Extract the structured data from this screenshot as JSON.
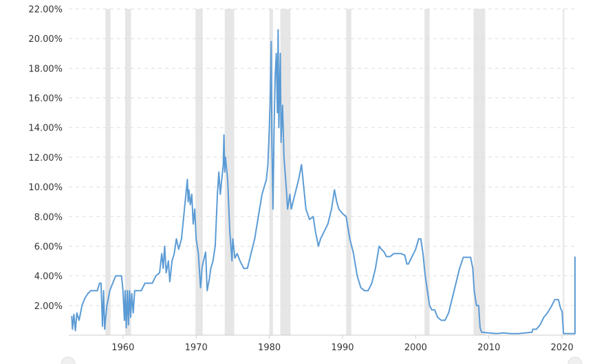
{
  "chart_data": {
    "type": "line",
    "title": "",
    "xlabel": "",
    "ylabel": "",
    "xlim": [
      1953.0,
      2022.3
    ],
    "ylim": [
      0,
      22
    ],
    "y_ticks": [
      {
        "value": 2,
        "label": "2.00%"
      },
      {
        "value": 4,
        "label": "4.00%"
      },
      {
        "value": 6,
        "label": "6.00%"
      },
      {
        "value": 8,
        "label": "8.00%"
      },
      {
        "value": 10,
        "label": "10.00%"
      },
      {
        "value": 12,
        "label": "12.00%"
      },
      {
        "value": 14,
        "label": "14.00%"
      },
      {
        "value": 16,
        "label": "16.00%"
      },
      {
        "value": 18,
        "label": "18.00%"
      },
      {
        "value": 20,
        "label": "20.00%"
      },
      {
        "value": 22,
        "label": "22.00%"
      }
    ],
    "x_ticks": [
      {
        "value": 1960,
        "label": "1960"
      },
      {
        "value": 1970,
        "label": "1970"
      },
      {
        "value": 1980,
        "label": "1980"
      },
      {
        "value": 1990,
        "label": "1990"
      },
      {
        "value": 2000,
        "label": "2000"
      },
      {
        "value": 2010,
        "label": "2010"
      },
      {
        "value": 2020,
        "label": "2020"
      }
    ],
    "grid": true,
    "recessions": [
      [
        1957.6,
        1958.3
      ],
      [
        1960.3,
        1961.1
      ],
      [
        1969.9,
        1970.9
      ],
      [
        1973.9,
        1975.2
      ],
      [
        1980.0,
        1980.5
      ],
      [
        1981.5,
        1982.9
      ],
      [
        1990.5,
        1991.2
      ],
      [
        2001.2,
        2001.9
      ],
      [
        2007.9,
        2009.5
      ],
      [
        2020.1,
        2020.3
      ]
    ],
    "series": [
      {
        "color": "#5b9bd5",
        "points": [
          [
            1953.0,
            1.3
          ],
          [
            1953.1,
            0.4
          ],
          [
            1953.3,
            1.4
          ],
          [
            1953.5,
            0.3
          ],
          [
            1953.7,
            1.5
          ],
          [
            1954.0,
            1.0
          ],
          [
            1954.4,
            2.0
          ],
          [
            1954.8,
            2.5
          ],
          [
            1955.2,
            2.8
          ],
          [
            1955.6,
            3.0
          ],
          [
            1956.0,
            3.0
          ],
          [
            1956.5,
            3.0
          ],
          [
            1956.8,
            3.5
          ],
          [
            1957.0,
            3.5
          ],
          [
            1957.2,
            0.6
          ],
          [
            1957.35,
            3.0
          ],
          [
            1957.5,
            0.4
          ],
          [
            1957.6,
            1.0
          ],
          [
            1957.8,
            2.0
          ],
          [
            1958.2,
            3.0
          ],
          [
            1958.6,
            3.5
          ],
          [
            1959.0,
            4.0
          ],
          [
            1959.5,
            4.0
          ],
          [
            1959.8,
            4.0
          ],
          [
            1960.0,
            3.0
          ],
          [
            1960.2,
            1.0
          ],
          [
            1960.3,
            3.0
          ],
          [
            1960.45,
            0.5
          ],
          [
            1960.6,
            3.0
          ],
          [
            1960.75,
            0.7
          ],
          [
            1960.9,
            3.0
          ],
          [
            1961.05,
            1.2
          ],
          [
            1961.2,
            2.8
          ],
          [
            1961.4,
            1.5
          ],
          [
            1961.6,
            3.0
          ],
          [
            1962.0,
            3.0
          ],
          [
            1962.5,
            3.0
          ],
          [
            1963.0,
            3.5
          ],
          [
            1963.5,
            3.5
          ],
          [
            1964.0,
            3.5
          ],
          [
            1964.5,
            4.0
          ],
          [
            1965.0,
            4.2
          ],
          [
            1965.3,
            5.5
          ],
          [
            1965.5,
            4.5
          ],
          [
            1965.7,
            6.0
          ],
          [
            1965.9,
            4.2
          ],
          [
            1966.2,
            5.0
          ],
          [
            1966.4,
            3.6
          ],
          [
            1966.7,
            5.0
          ],
          [
            1967.0,
            5.5
          ],
          [
            1967.3,
            6.5
          ],
          [
            1967.6,
            5.8
          ],
          [
            1968.0,
            6.5
          ],
          [
            1968.3,
            8.0
          ],
          [
            1968.6,
            9.5
          ],
          [
            1968.8,
            10.5
          ],
          [
            1968.9,
            9.0
          ],
          [
            1969.0,
            9.8
          ],
          [
            1969.2,
            8.8
          ],
          [
            1969.4,
            9.5
          ],
          [
            1969.6,
            7.5
          ],
          [
            1969.8,
            8.5
          ],
          [
            1970.0,
            6.5
          ],
          [
            1970.3,
            5.5
          ],
          [
            1970.6,
            3.2
          ],
          [
            1970.8,
            4.5
          ],
          [
            1971.0,
            5.0
          ],
          [
            1971.3,
            5.6
          ],
          [
            1971.5,
            3.0
          ],
          [
            1971.8,
            3.8
          ],
          [
            1972.0,
            4.5
          ],
          [
            1972.3,
            5.0
          ],
          [
            1972.6,
            6.0
          ],
          [
            1972.9,
            9.5
          ],
          [
            1973.1,
            11.0
          ],
          [
            1973.3,
            9.5
          ],
          [
            1973.5,
            10.5
          ],
          [
            1973.7,
            11.5
          ],
          [
            1973.8,
            13.5
          ],
          [
            1973.9,
            11.0
          ],
          [
            1974.0,
            12.0
          ],
          [
            1974.3,
            10.5
          ],
          [
            1974.6,
            7.0
          ],
          [
            1974.9,
            5.0
          ],
          [
            1975.0,
            6.5
          ],
          [
            1975.3,
            5.2
          ],
          [
            1975.6,
            5.5
          ],
          [
            1976.0,
            5.0
          ],
          [
            1976.5,
            4.5
          ],
          [
            1977.0,
            4.5
          ],
          [
            1977.5,
            5.5
          ],
          [
            1978.0,
            6.5
          ],
          [
            1978.5,
            8.0
          ],
          [
            1979.0,
            9.5
          ],
          [
            1979.3,
            10.0
          ],
          [
            1979.6,
            10.5
          ],
          [
            1979.8,
            11.5
          ],
          [
            1980.0,
            14.0
          ],
          [
            1980.15,
            16.5
          ],
          [
            1980.25,
            19.8
          ],
          [
            1980.35,
            13.0
          ],
          [
            1980.5,
            8.5
          ],
          [
            1980.65,
            14.0
          ],
          [
            1980.8,
            17.5
          ],
          [
            1980.95,
            19.0
          ],
          [
            1981.1,
            15.0
          ],
          [
            1981.2,
            20.6
          ],
          [
            1981.3,
            14.0
          ],
          [
            1981.5,
            19.0
          ],
          [
            1981.6,
            13.0
          ],
          [
            1981.8,
            15.5
          ],
          [
            1982.0,
            12.0
          ],
          [
            1982.3,
            10.0
          ],
          [
            1982.5,
            8.5
          ],
          [
            1982.8,
            9.5
          ],
          [
            1983.0,
            8.5
          ],
          [
            1983.5,
            9.5
          ],
          [
            1984.0,
            10.5
          ],
          [
            1984.4,
            11.5
          ],
          [
            1984.7,
            10.0
          ],
          [
            1985.0,
            8.5
          ],
          [
            1985.5,
            7.8
          ],
          [
            1986.0,
            8.0
          ],
          [
            1986.3,
            7.0
          ],
          [
            1986.7,
            6.0
          ],
          [
            1987.0,
            6.5
          ],
          [
            1987.5,
            7.0
          ],
          [
            1988.0,
            7.5
          ],
          [
            1988.5,
            8.5
          ],
          [
            1988.9,
            9.8
          ],
          [
            1989.2,
            9.0
          ],
          [
            1989.5,
            8.5
          ],
          [
            1990.0,
            8.2
          ],
          [
            1990.5,
            8.0
          ],
          [
            1991.0,
            6.5
          ],
          [
            1991.5,
            5.5
          ],
          [
            1992.0,
            4.0
          ],
          [
            1992.5,
            3.2
          ],
          [
            1993.0,
            3.0
          ],
          [
            1993.5,
            3.0
          ],
          [
            1994.0,
            3.5
          ],
          [
            1994.5,
            4.5
          ],
          [
            1995.0,
            6.0
          ],
          [
            1995.3,
            5.8
          ],
          [
            1995.7,
            5.6
          ],
          [
            1996.0,
            5.3
          ],
          [
            1996.5,
            5.3
          ],
          [
            1997.0,
            5.5
          ],
          [
            1997.5,
            5.5
          ],
          [
            1998.0,
            5.5
          ],
          [
            1998.5,
            5.4
          ],
          [
            1998.8,
            4.8
          ],
          [
            1999.0,
            4.8
          ],
          [
            1999.5,
            5.3
          ],
          [
            2000.0,
            5.8
          ],
          [
            2000.4,
            6.5
          ],
          [
            2000.7,
            6.5
          ],
          [
            2001.0,
            5.5
          ],
          [
            2001.3,
            4.0
          ],
          [
            2001.6,
            3.0
          ],
          [
            2001.9,
            2.0
          ],
          [
            2002.2,
            1.7
          ],
          [
            2002.6,
            1.7
          ],
          [
            2003.0,
            1.2
          ],
          [
            2003.5,
            1.0
          ],
          [
            2004.0,
            1.0
          ],
          [
            2004.5,
            1.5
          ],
          [
            2005.0,
            2.5
          ],
          [
            2005.5,
            3.5
          ],
          [
            2006.0,
            4.5
          ],
          [
            2006.5,
            5.25
          ],
          [
            2007.0,
            5.25
          ],
          [
            2007.5,
            5.25
          ],
          [
            2007.8,
            4.5
          ],
          [
            2008.0,
            3.0
          ],
          [
            2008.3,
            2.0
          ],
          [
            2008.6,
            2.0
          ],
          [
            2008.8,
            0.5
          ],
          [
            2009.0,
            0.2
          ],
          [
            2010.0,
            0.15
          ],
          [
            2011.0,
            0.1
          ],
          [
            2012.0,
            0.15
          ],
          [
            2013.0,
            0.1
          ],
          [
            2014.0,
            0.1
          ],
          [
            2015.0,
            0.15
          ],
          [
            2015.9,
            0.2
          ],
          [
            2016.0,
            0.4
          ],
          [
            2016.5,
            0.4
          ],
          [
            2017.0,
            0.7
          ],
          [
            2017.5,
            1.2
          ],
          [
            2018.0,
            1.5
          ],
          [
            2018.5,
            1.9
          ],
          [
            2019.0,
            2.4
          ],
          [
            2019.5,
            2.4
          ],
          [
            2019.8,
            1.8
          ],
          [
            2020.0,
            1.6
          ],
          [
            2020.2,
            0.1
          ],
          [
            2021.0,
            0.1
          ],
          [
            2021.9,
            0.1
          ],
          [
            2022.1,
            0.3
          ],
          [
            2022.2,
            1.0
          ],
          [
            2022.3,
            1.6
          ],
          [
            2022.4,
            2.5
          ],
          [
            2022.5,
            3.0
          ],
          [
            2022.6,
            3.8
          ],
          [
            2022.8,
            4.3
          ],
          [
            2023.0,
            4.6
          ],
          [
            2023.3,
            5.0
          ],
          [
            2023.6,
            5.3
          ],
          [
            2024.5,
            5.3
          ],
          [
            2025.0,
            5.3
          ]
        ]
      }
    ]
  }
}
